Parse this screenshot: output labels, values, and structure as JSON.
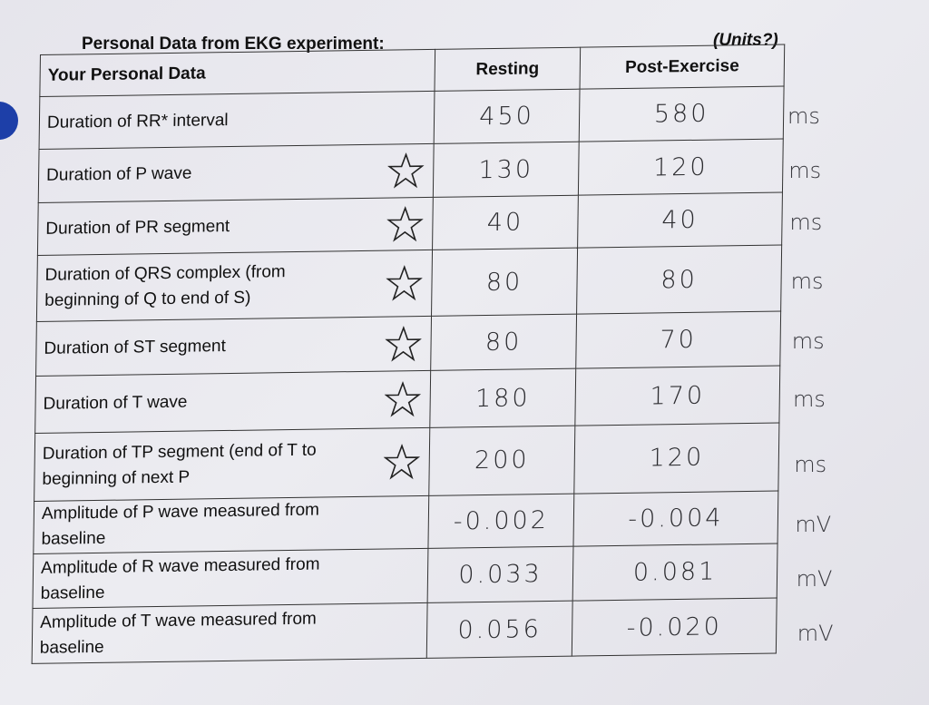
{
  "document": {
    "title": "Personal Data from EKG experiment:",
    "units_heading": "(Units?)"
  },
  "table": {
    "headers": [
      "Your Personal Data",
      "Resting",
      "Post-Exercise"
    ],
    "rows": [
      {
        "label": "Duration of RR* interval",
        "starred": false,
        "resting": "450",
        "post": "580",
        "unit": "ms"
      },
      {
        "label": "Duration of P wave",
        "starred": true,
        "resting": "130",
        "post": "120",
        "unit": "ms"
      },
      {
        "label": "Duration of PR segment",
        "starred": true,
        "resting": "40",
        "post": "40",
        "unit": "ms"
      },
      {
        "label": "Duration of QRS complex (from beginning of Q to end of S)",
        "starred": true,
        "resting": "80",
        "post": "80",
        "unit": "ms"
      },
      {
        "label": "Duration of ST segment",
        "starred": true,
        "resting": "80",
        "post": "70",
        "unit": "ms"
      },
      {
        "label": "Duration of T wave",
        "starred": true,
        "resting": "180",
        "post": "170",
        "unit": "ms"
      },
      {
        "label": "Duration of TP segment (end of T to beginning of next P",
        "starred": true,
        "resting": "200",
        "post": "120",
        "unit": "ms"
      },
      {
        "label": "Amplitude of P wave measured from baseline",
        "starred": false,
        "resting": "-0.002",
        "post": "-0.004",
        "unit": "mV"
      },
      {
        "label": "Amplitude of R wave measured from baseline",
        "starred": false,
        "resting": "0.033",
        "post": "0.081",
        "unit": "mV"
      },
      {
        "label": "Amplitude of T wave measured from baseline",
        "starred": false,
        "resting": "0.056",
        "post": "-0.020",
        "unit": "mV"
      }
    ]
  },
  "icons": {
    "star": "star-outline-icon",
    "hole": "punch-hole"
  },
  "colors": {
    "hole": "#1d3fa8",
    "ink": "#2b2b2f"
  }
}
